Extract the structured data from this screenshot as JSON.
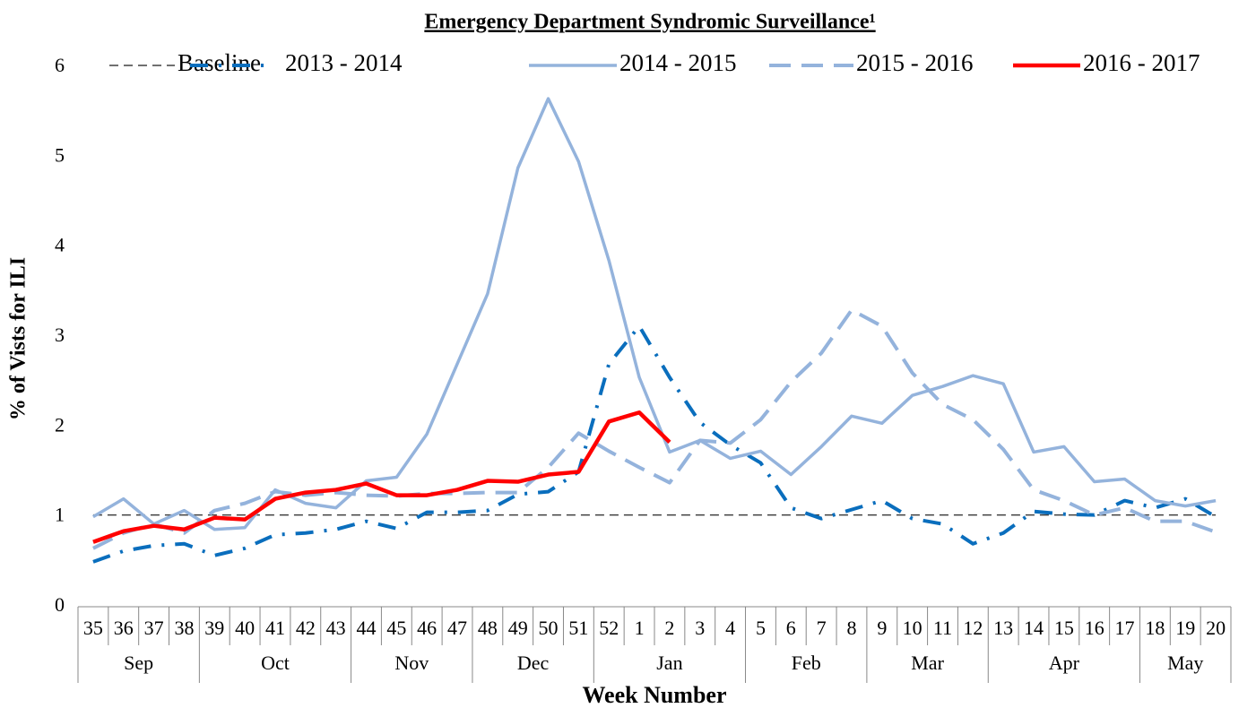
{
  "chart_data": {
    "type": "line",
    "title": "Emergency Department Syndromic Surveillance¹",
    "x_label": "Week Number",
    "y_label": "% of Vists for ILI",
    "categories": [
      "35",
      "36",
      "37",
      "38",
      "39",
      "40",
      "41",
      "42",
      "43",
      "44",
      "45",
      "46",
      "47",
      "48",
      "49",
      "50",
      "51",
      "52",
      "1",
      "2",
      "3",
      "4",
      "5",
      "6",
      "7",
      "8",
      "9",
      "10",
      "11",
      "12",
      "13",
      "14",
      "15",
      "16",
      "17",
      "18",
      "19",
      "20"
    ],
    "month_groups": [
      {
        "label": "Sep",
        "count": 4
      },
      {
        "label": "Oct",
        "count": 5
      },
      {
        "label": "Nov",
        "count": 4
      },
      {
        "label": "Dec",
        "count": 4
      },
      {
        "label": "Jan",
        "count": 5
      },
      {
        "label": "Feb",
        "count": 4
      },
      {
        "label": "Mar",
        "count": 4
      },
      {
        "label": "Apr",
        "count": 5
      },
      {
        "label": "May",
        "count": 3
      }
    ],
    "ylim": [
      0,
      6
    ],
    "yticks": [
      0,
      1,
      2,
      3,
      4,
      5,
      6
    ],
    "series": [
      {
        "name": "Baseline",
        "color": "#404040",
        "dash": "10,6",
        "width": 1.5,
        "values": [
          1.02,
          1.02,
          1.02,
          1.02,
          1.02,
          1.02,
          1.02,
          1.02,
          1.02,
          1.02,
          1.02,
          1.02,
          1.02,
          1.02,
          1.02,
          1.02,
          1.02,
          1.02,
          1.02,
          1.02,
          1.02,
          1.02,
          1.02,
          1.02,
          1.02,
          1.02,
          1.02,
          1.02,
          1.02,
          1.02,
          1.02,
          1.02,
          1.02,
          1.02,
          1.02,
          1.02,
          1.02,
          1.02
        ]
      },
      {
        "name": "2013 - 2014",
        "color": "#0a6ebd",
        "dash": "20,12,3,12",
        "width": 4,
        "values": [
          0.5,
          0.62,
          0.68,
          0.7,
          0.57,
          0.65,
          0.8,
          0.82,
          0.86,
          0.95,
          0.87,
          1.05,
          1.05,
          1.07,
          1.25,
          1.28,
          1.5,
          2.7,
          3.12,
          2.55,
          2.05,
          1.8,
          1.6,
          1.1,
          0.98,
          1.08,
          1.18,
          0.98,
          0.92,
          0.7,
          0.82,
          1.06,
          1.03,
          1.02,
          1.18,
          1.1,
          1.2,
          1.0
        ]
      },
      {
        "name": "2014 - 2015",
        "color": "#94b3dc",
        "dash": "none",
        "width": 3.5,
        "values": [
          1.0,
          1.2,
          0.92,
          1.07,
          0.86,
          0.88,
          1.3,
          1.15,
          1.1,
          1.4,
          1.44,
          1.92,
          2.7,
          3.48,
          4.88,
          5.65,
          4.95,
          3.85,
          2.55,
          1.72,
          1.85,
          1.65,
          1.73,
          1.47,
          1.78,
          2.12,
          2.04,
          2.35,
          2.45,
          2.57,
          2.48,
          1.72,
          1.78,
          1.39,
          1.42,
          1.18,
          1.12,
          1.18
        ]
      },
      {
        "name": "2015 - 2016",
        "color": "#94b3dc",
        "dash": "24,12",
        "width": 4,
        "values": [
          0.65,
          0.82,
          0.92,
          0.82,
          1.07,
          1.15,
          1.28,
          1.24,
          1.27,
          1.24,
          1.23,
          1.26,
          1.26,
          1.27,
          1.27,
          1.55,
          1.93,
          1.73,
          1.55,
          1.38,
          1.85,
          1.82,
          2.08,
          2.5,
          2.82,
          3.3,
          3.12,
          2.6,
          2.25,
          2.08,
          1.75,
          1.3,
          1.18,
          1.02,
          1.1,
          0.95,
          0.95,
          0.83
        ]
      },
      {
        "name": "2016 - 2017",
        "color": "#ff0000",
        "dash": "none",
        "width": 4.5,
        "values": [
          0.72,
          0.84,
          0.9,
          0.86,
          0.99,
          0.97,
          1.2,
          1.27,
          1.3,
          1.37,
          1.24,
          1.24,
          1.3,
          1.4,
          1.39,
          1.47,
          1.5,
          2.06,
          2.16,
          1.83,
          null,
          null,
          null,
          null,
          null,
          null,
          null,
          null,
          null,
          null,
          null,
          null,
          null,
          null,
          null,
          null,
          null,
          null
        ]
      }
    ]
  }
}
